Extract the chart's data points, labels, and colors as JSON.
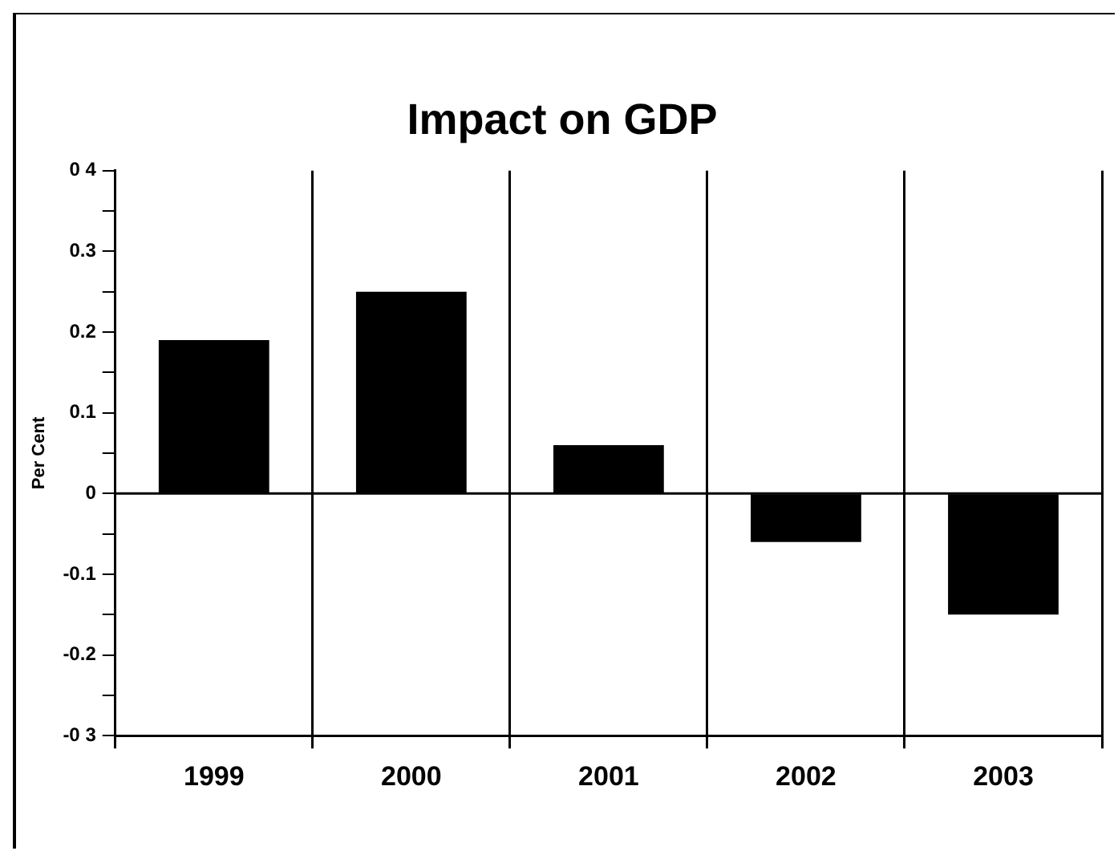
{
  "chart_data": {
    "type": "bar",
    "title": "Impact on GDP",
    "ylabel": "Per Cent",
    "categories": [
      "1999",
      "2000",
      "2001",
      "2002",
      "2003"
    ],
    "values": [
      0.19,
      0.25,
      0.06,
      -0.06,
      -0.15
    ],
    "color": "#000000",
    "ylim": [
      -0.3,
      0.4
    ],
    "yticks": [
      {
        "value": -0.3,
        "label": "-0 3"
      },
      {
        "value": -0.25,
        "label": null
      },
      -0.2,
      {
        "value": -0.15,
        "label": null
      },
      -0.1,
      {
        "value": -0.05,
        "label": null
      },
      0,
      {
        "value": 0.05,
        "label": null
      },
      0.1,
      {
        "value": 0.15,
        "label": null
      },
      0.2,
      {
        "value": 0.25,
        "label": null
      },
      0.3,
      {
        "value": 0.35,
        "label": null
      },
      {
        "value": 0.4,
        "label": "0 4"
      }
    ],
    "ref_lines": [
      {
        "axis": "y",
        "value": 0,
        "color": "#000000"
      }
    ],
    "grid": "x",
    "legend": false
  }
}
